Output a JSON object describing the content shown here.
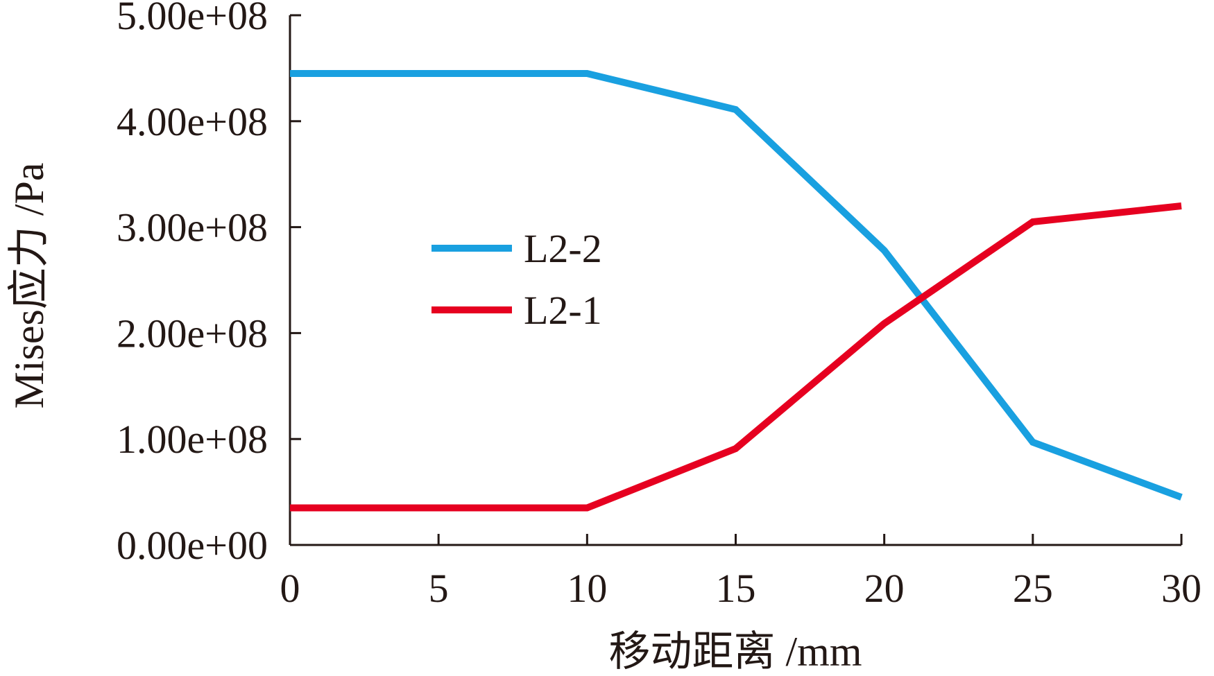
{
  "chart_data": {
    "type": "line",
    "title": "",
    "xlabel": "移动距离 /mm",
    "ylabel": "Mises应力 /Pa",
    "xlim": [
      0,
      30
    ],
    "ylim": [
      0,
      500000000
    ],
    "x_ticks": [
      0,
      5,
      10,
      15,
      20,
      25,
      30
    ],
    "x_tick_labels": [
      "0",
      "5",
      "10",
      "15",
      "20",
      "25",
      "30"
    ],
    "y_ticks": [
      0,
      100000000,
      200000000,
      300000000,
      400000000,
      500000000
    ],
    "y_tick_labels": [
      "0.00e+00",
      "1.00e+08",
      "2.00e+08",
      "3.00e+08",
      "4.00e+08",
      "5.00e+08"
    ],
    "grid": false,
    "legend_position": "center",
    "x": [
      0,
      10,
      15,
      20,
      25,
      30
    ],
    "series": [
      {
        "name": "L2-2",
        "color": "#19a0e0",
        "values": [
          445000000,
          445000000,
          411000000,
          278000000,
          97000000,
          45000000
        ]
      },
      {
        "name": "L2-1",
        "color": "#e60020",
        "values": [
          35000000,
          35000000,
          91000000,
          209000000,
          305000000,
          320000000
        ]
      }
    ]
  }
}
